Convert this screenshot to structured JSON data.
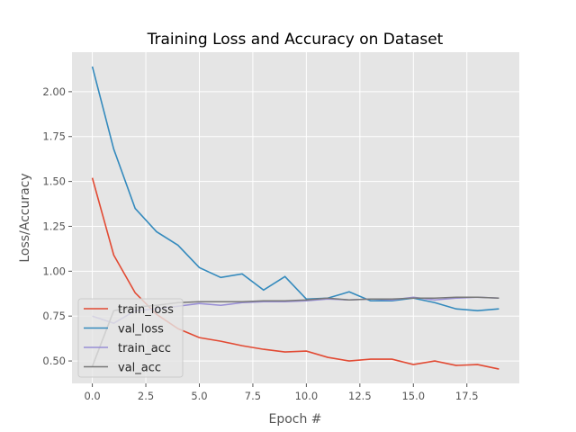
{
  "chart_data": {
    "type": "line",
    "title": "Training Loss and Accuracy on Dataset",
    "xlabel": "Epoch #",
    "ylabel": "Loss/Accuracy",
    "xlim": [
      -0.95,
      19.95
    ],
    "ylim": [
      0.375,
      2.22
    ],
    "grid": true,
    "legend_position": "lower-left",
    "xticks": [
      0,
      2.5,
      5,
      7.5,
      10,
      12.5,
      15,
      17.5
    ],
    "xtick_labels": [
      "0.0",
      "2.5",
      "5.0",
      "7.5",
      "10.0",
      "12.5",
      "15.0",
      "17.5"
    ],
    "yticks": [
      0.5,
      0.75,
      1.0,
      1.25,
      1.5,
      1.75,
      2.0
    ],
    "ytick_labels": [
      "0.50",
      "0.75",
      "1.00",
      "1.25",
      "1.50",
      "1.75",
      "2.00"
    ],
    "x": [
      0,
      1,
      2,
      3,
      4,
      5,
      6,
      7,
      8,
      9,
      10,
      11,
      12,
      13,
      14,
      15,
      16,
      17,
      18,
      19
    ],
    "series": [
      {
        "name": "train_loss",
        "color": "#E24A33",
        "values": [
          1.52,
          1.09,
          0.88,
          0.76,
          0.68,
          0.63,
          0.61,
          0.585,
          0.565,
          0.55,
          0.555,
          0.52,
          0.5,
          0.51,
          0.51,
          0.48,
          0.5,
          0.475,
          0.48,
          0.455
        ]
      },
      {
        "name": "val_loss",
        "color": "#348ABD",
        "values": [
          2.14,
          1.68,
          1.35,
          1.22,
          1.145,
          1.02,
          0.965,
          0.985,
          0.895,
          0.97,
          0.845,
          0.85,
          0.885,
          0.835,
          0.835,
          0.85,
          0.825,
          0.79,
          0.78,
          0.79
        ]
      },
      {
        "name": "train_acc",
        "color": "#988ED5",
        "values": [
          0.75,
          0.71,
          0.78,
          0.79,
          0.805,
          0.82,
          0.81,
          0.825,
          0.83,
          0.83,
          0.835,
          0.845,
          0.84,
          0.845,
          0.84,
          0.855,
          0.84,
          0.85,
          0.855,
          0.85
        ]
      },
      {
        "name": "val_acc",
        "color": "#777777",
        "values": [
          0.47,
          0.78,
          0.8,
          0.81,
          0.825,
          0.83,
          0.83,
          0.83,
          0.835,
          0.835,
          0.84,
          0.85,
          0.84,
          0.845,
          0.845,
          0.85,
          0.85,
          0.855,
          0.855,
          0.85
        ]
      }
    ]
  }
}
